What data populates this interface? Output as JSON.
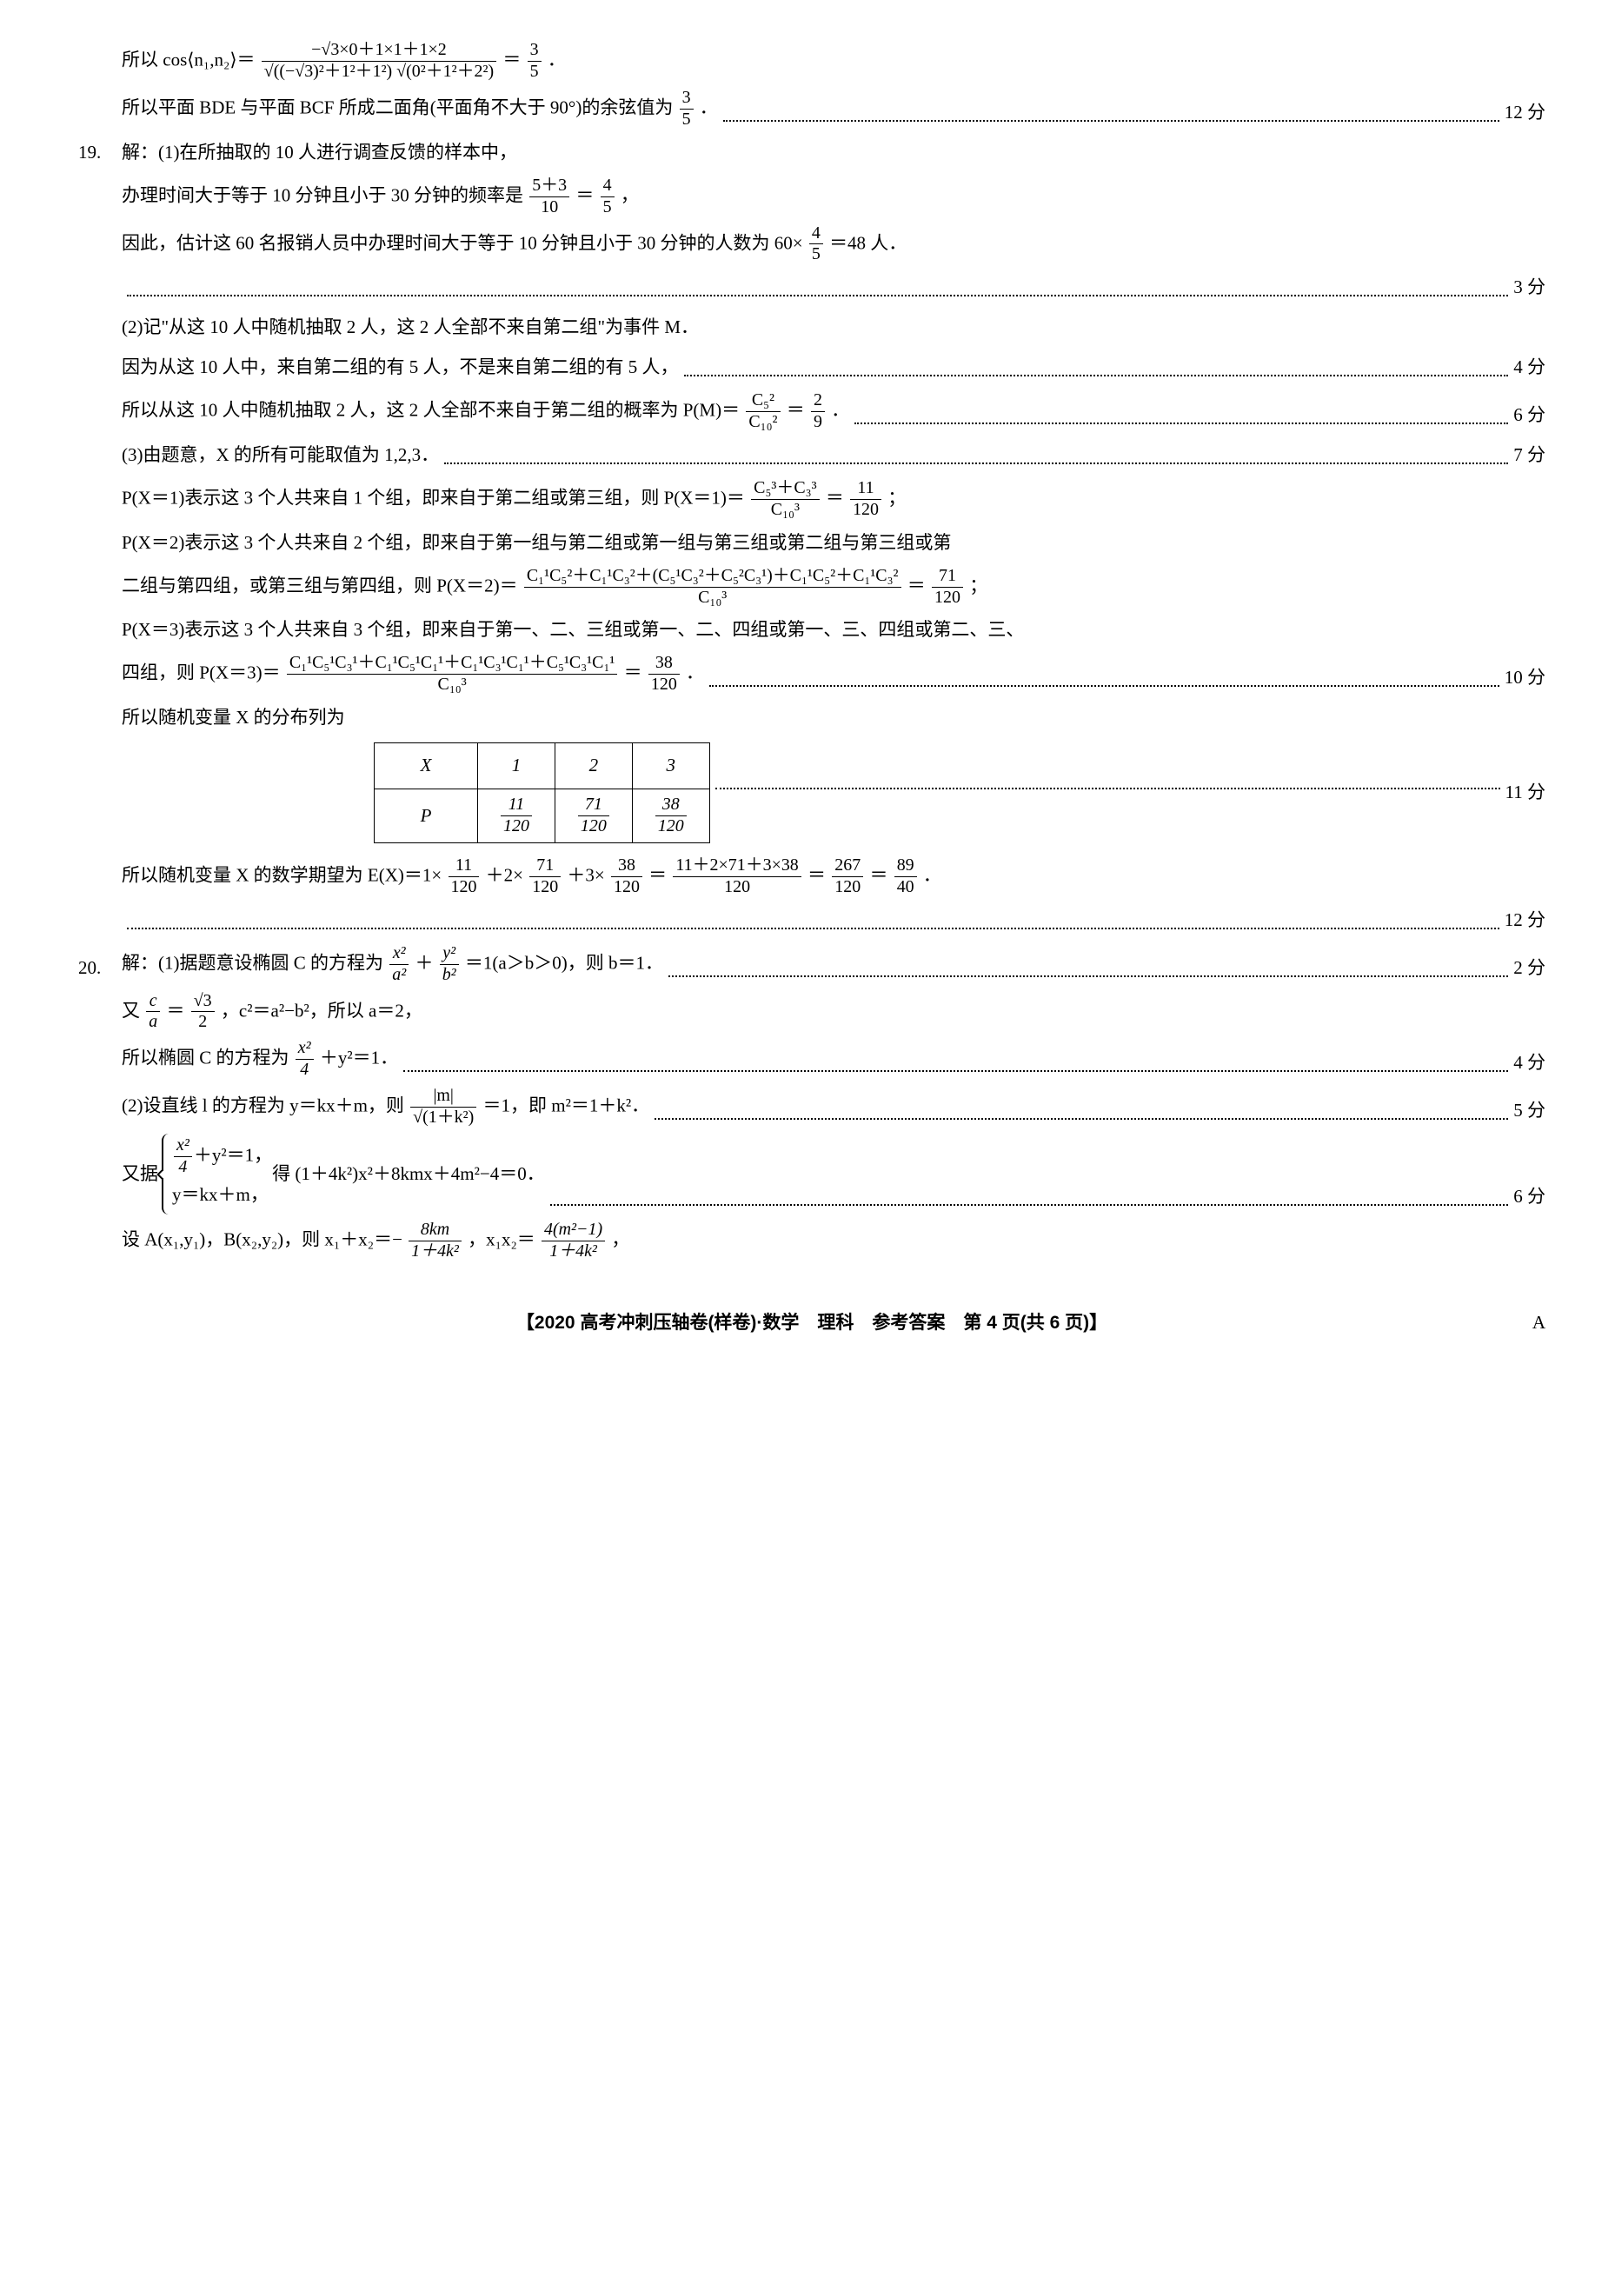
{
  "l1": "所以 cos⟨n₁,n₂⟩＝",
  "l1_num": "−√3×0＋1×1＋1×2",
  "l1_den": "√((−√3)²＋1²＋1²) √(0²＋1²＋2²)",
  "l1_eq": "＝",
  "l1_fr_n": "3",
  "l1_fr_d": "5",
  "l1_end": "．",
  "l2a": "所以平面 BDE 与平面 BCF 所成二面角(平面角不大于 90°)的余弦值为",
  "l2_fr_n": "3",
  "l2_fr_d": "5",
  "l2_end": "．",
  "l2_score": "12 分",
  "q19": "19.",
  "q19_a": "解：(1)在所抽取的 10 人进行调查反馈的样本中，",
  "l3": "办理时间大于等于 10 分钟且小于 30 分钟的频率是",
  "l3_fr1_n": "5＋3",
  "l3_fr1_d": "10",
  "l3_eq": "＝",
  "l3_fr2_n": "4",
  "l3_fr2_d": "5",
  "l3_end": "，",
  "l4": "因此，估计这 60 名报销人员中办理时间大于等于 10 分钟且小于 30 分钟的人数为 60×",
  "l4_fr_n": "4",
  "l4_fr_d": "5",
  "l4_end": "＝48 人．",
  "l4_score": "3 分",
  "l5": "(2)记\"从这 10 人中随机抽取 2 人，这 2 人全部不来自第二组\"为事件 M．",
  "l6": "因为从这 10 人中，来自第二组的有 5 人，不是来自第二组的有 5 人，",
  "l6_score": "4 分",
  "l7": "所以从这 10 人中随机抽取 2 人，这 2 人全部不来自于第二组的概率为 P(M)＝",
  "l7_fr1_n": "C₅²",
  "l7_fr1_d": "C₁₀²",
  "l7_eq": "＝",
  "l7_fr2_n": "2",
  "l7_fr2_d": "9",
  "l7_end": "．",
  "l7_score": "6 分",
  "l8": "(3)由题意，X 的所有可能取值为 1,2,3．",
  "l8_score": "7 分",
  "l9": "P(X＝1)表示这 3 个人共来自 1 个组，即来自于第二组或第三组，则 P(X＝1)＝",
  "l9_fr1_n": "C₅³＋C₃³",
  "l9_fr1_d": "C₁₀³",
  "l9_eq": "＝",
  "l9_fr2_n": "11",
  "l9_fr2_d": "120",
  "l9_end": "；",
  "l10": "P(X＝2)表示这 3 个人共来自 2 个组，即来自于第一组与第二组或第一组与第三组或第二组与第三组或第",
  "l11": "二组与第四组，或第三组与第四组，则 P(X＝2)＝",
  "l11_fr1_n": "C₁¹C₅²＋C₁¹C₃²＋(C₅¹C₃²＋C₅²C₃¹)＋C₁¹C₅²＋C₁¹C₃²",
  "l11_fr1_d": "C₁₀³",
  "l11_eq": "＝",
  "l11_fr2_n": "71",
  "l11_fr2_d": "120",
  "l11_end": "；",
  "l12": "P(X＝3)表示这 3 个人共来自 3 个组，即来自于第一、二、三组或第一、二、四组或第一、三、四组或第二、三、",
  "l13": "四组，则 P(X＝3)＝",
  "l13_fr1_n": "C₁¹C₅¹C₃¹＋C₁¹C₅¹C₁¹＋C₁¹C₃¹C₁¹＋C₅¹C₃¹C₁¹",
  "l13_fr1_d": "C₁₀³",
  "l13_eq": "＝",
  "l13_fr2_n": "38",
  "l13_fr2_d": "120",
  "l13_end": "．",
  "l13_score": "10 分",
  "l14": "所以随机变量 X 的分布列为",
  "table": {
    "h": "X",
    "r1": [
      "1",
      "2",
      "3"
    ],
    "ph": "P",
    "r2n": [
      "11",
      "71",
      "38"
    ],
    "r2d": "120"
  },
  "l14_score": "11 分",
  "l15": "所以随机变量 X 的数学期望为 E(X)＝1×",
  "l15_f1n": "11",
  "l15_f1d": "120",
  "l15_p1": "＋2×",
  "l15_f2n": "71",
  "l15_f2d": "120",
  "l15_p2": "＋3×",
  "l15_f3n": "38",
  "l15_f3d": "120",
  "l15_eq": "＝",
  "l15_f4n": "11＋2×71＋3×38",
  "l15_f4d": "120",
  "l15_eq2": "＝",
  "l15_f5n": "267",
  "l15_f5d": "120",
  "l15_eq3": "＝",
  "l15_f6n": "89",
  "l15_f6d": "40",
  "l15_end": "．",
  "l15_score": "12 分",
  "q20": "20.",
  "q20_a": "解：(1)据题意设椭圆 C 的方程为",
  "q20_f1n": "x²",
  "q20_f1d": "a²",
  "q20_p": "＋",
  "q20_f2n": "y²",
  "q20_f2d": "b²",
  "q20_end": "＝1(a＞b＞0)，则 b＝1．",
  "q20_score": "2 分",
  "l16": "又",
  "l16_f1n": "c",
  "l16_f1d": "a",
  "l16_eq": "＝",
  "l16_f2n": "√3",
  "l16_f2d": "2",
  "l16_end": "，c²＝a²−b²，所以 a＝2，",
  "l17": "所以椭圆 C 的方程为",
  "l17_f1n": "x²",
  "l17_f1d": "4",
  "l17_end": "＋y²＝1．",
  "l17_score": "4 分",
  "l18": "(2)设直线 l 的方程为 y＝kx＋m，则",
  "l18_f1n": "|m|",
  "l18_f1d": "√(1＋k²)",
  "l18_end": "＝1，即 m²＝1＋k²．",
  "l18_score": "5 分",
  "l19": "又据",
  "l19_b1": "x²",
  "l19_b1e": "＋y²＝1，",
  "l19_b2": "y＝kx＋m，",
  "l19_mid": "得 (1＋4k²)x²＋8kmx＋4m²−4＝0．",
  "l19_score": "6 分",
  "l20": "设 A(x₁,y₁)，B(x₂,y₂)，则 x₁＋x₂＝−",
  "l20_f1n": "8km",
  "l20_f1d": "1＋4k²",
  "l20_p": "，x₁x₂＝",
  "l20_f2n": "4(m²−1)",
  "l20_f2d": "1＋4k²",
  "l20_end": "，",
  "footer": "【2020 高考冲刺压轴卷(样卷)·数学　理科　参考答案　第 4 页(共 6 页)】",
  "footer_a": "A"
}
